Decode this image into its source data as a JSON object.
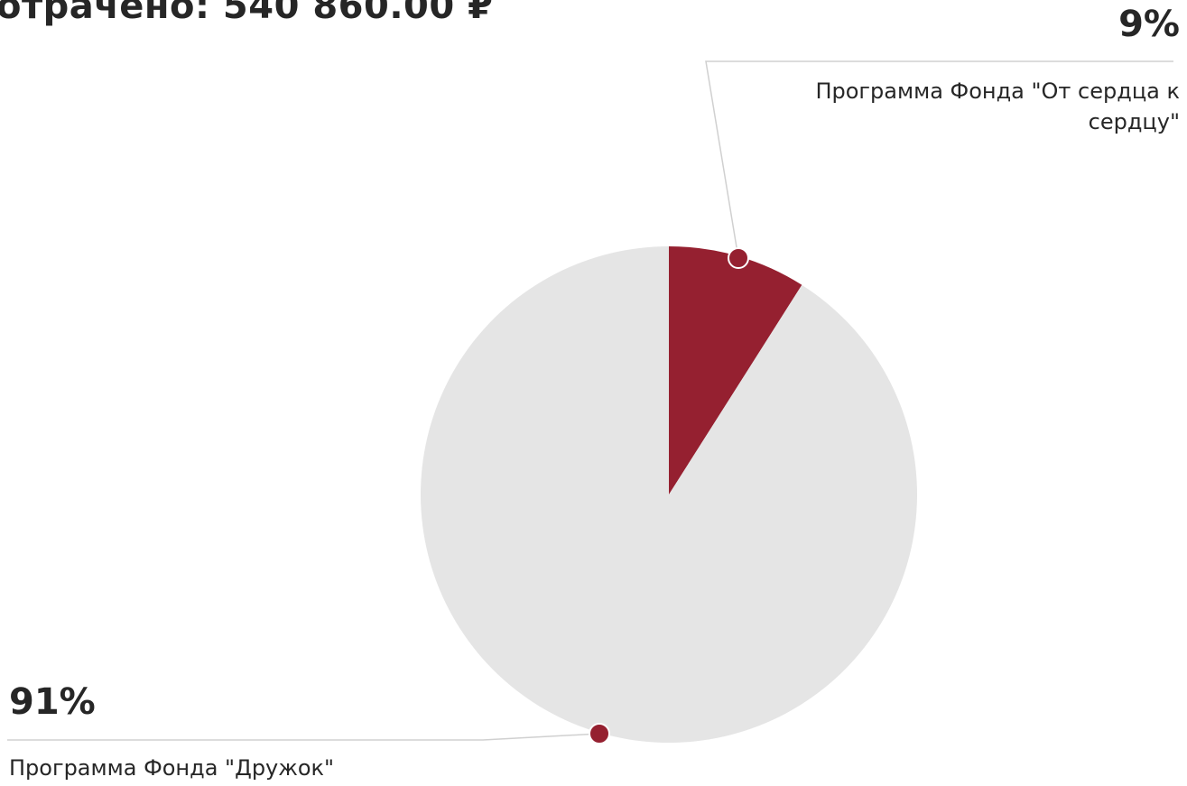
{
  "header": {
    "title": "отрачено: 540 860.00 ₽"
  },
  "chart_data": {
    "type": "pie",
    "title": "",
    "start_angle": "top",
    "direction": "clockwise",
    "slices": [
      {
        "label": "Программа Фонда \"От сердца к сердцу\"",
        "value": 9,
        "percent_label": "9%",
        "color": "#952030"
      },
      {
        "label": "Программа Фонда \"Дружок\"",
        "value": 91,
        "percent_label": "91%",
        "color": "#e5e5e5"
      }
    ],
    "marker_color": "#952030",
    "connector_color": "#d0d0d0"
  }
}
